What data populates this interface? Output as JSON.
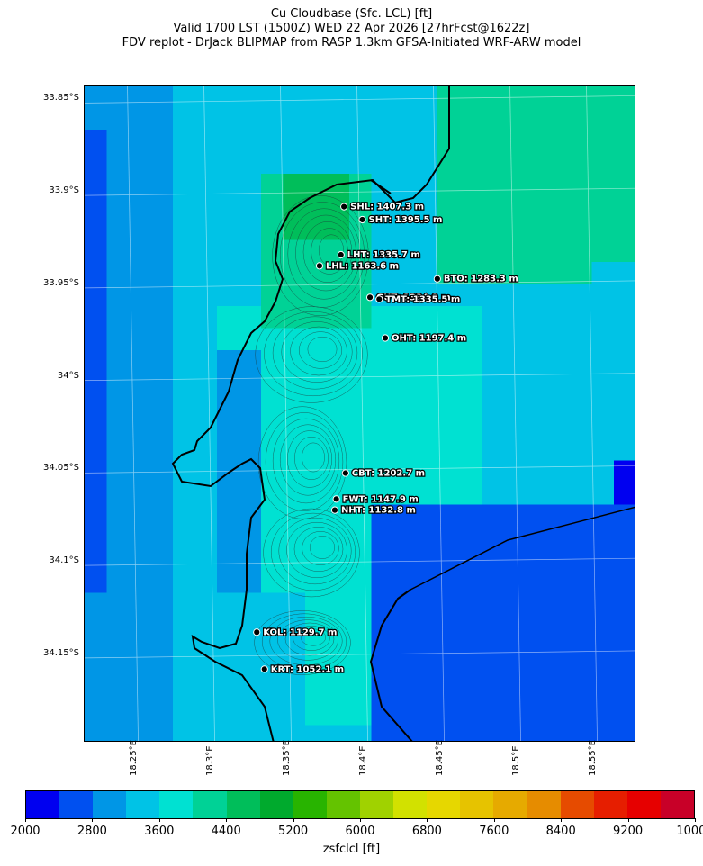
{
  "header": {
    "line1": "Cu Cloudbase (Sfc. LCL) [ft]",
    "line2": "Valid 1700 LST (1500Z) WED 22 Apr 2026 [27hrFcst@1622z]",
    "line3": "FDV replot - DrJack BLIPMAP from RASP 1.3km GFSA-Initiated WRF-ARW model"
  },
  "axes": {
    "latitudes": [
      "33.85°S",
      "33.9°S",
      "33.95°S",
      "34°S",
      "34.05°S",
      "34.1°S",
      "34.15°S"
    ],
    "longitudes": [
      "18.25°E",
      "18.3°E",
      "18.35°E",
      "18.4°E",
      "18.45°E",
      "18.5°E",
      "18.55°E"
    ]
  },
  "stations": [
    {
      "code": "SHL",
      "label": "SHL: 1407.3 m",
      "lon": 18.388,
      "lat": -33.908
    },
    {
      "code": "SHT",
      "label": "SHT: 1395.5 m",
      "lon": 18.4,
      "lat": -33.915
    },
    {
      "code": "LHT",
      "label": "LHT: 1335.7 m",
      "lon": 18.386,
      "lat": -33.934
    },
    {
      "code": "LHL",
      "label": "LHL: 1163.6 m",
      "lon": 18.372,
      "lat": -33.94
    },
    {
      "code": "BTO",
      "label": "BTO: 1283.3 m",
      "lon": 18.449,
      "lat": -33.947
    },
    {
      "code": "GUT",
      "label": "GUT: 1334.9 m",
      "lon": 18.405,
      "lat": -33.957
    },
    {
      "code": "TMT",
      "label": "TMT: 1335.5 m",
      "lon": 18.411,
      "lat": -33.958
    },
    {
      "code": "OHT",
      "label": "OHT: 1197.4 m",
      "lon": 18.415,
      "lat": -33.979
    },
    {
      "code": "CBT",
      "label": "CBT: 1202.7 m",
      "lon": 18.389,
      "lat": -34.052
    },
    {
      "code": "FWT",
      "label": "FWT: 1147.9 m",
      "lon": 18.383,
      "lat": -34.066
    },
    {
      "code": "NHT",
      "label": "NHT: 1132.8 m",
      "lon": 18.382,
      "lat": -34.072
    },
    {
      "code": "KOL",
      "label": "KOL: 1129.7 m",
      "lon": 18.331,
      "lat": -34.138
    },
    {
      "code": "KRT",
      "label": "KRT: 1052.1 m",
      "lon": 18.336,
      "lat": -34.158
    }
  ],
  "colorbar": {
    "label": "zsfclcl [ft]",
    "ticks": [
      "2000",
      "2800",
      "3600",
      "4400",
      "5200",
      "6000",
      "6800",
      "7600",
      "8400",
      "9200",
      "10000"
    ],
    "colors": [
      "#0000f0",
      "#0050f0",
      "#0096e6",
      "#00c3e6",
      "#00e1d2",
      "#00d296",
      "#00be5a",
      "#00aa2d",
      "#28b400",
      "#64c300",
      "#a0d200",
      "#d2e100",
      "#e6d700",
      "#e6c300",
      "#e6aa00",
      "#e68c00",
      "#e64b00",
      "#e61e00",
      "#e60000",
      "#c80028"
    ]
  }
}
